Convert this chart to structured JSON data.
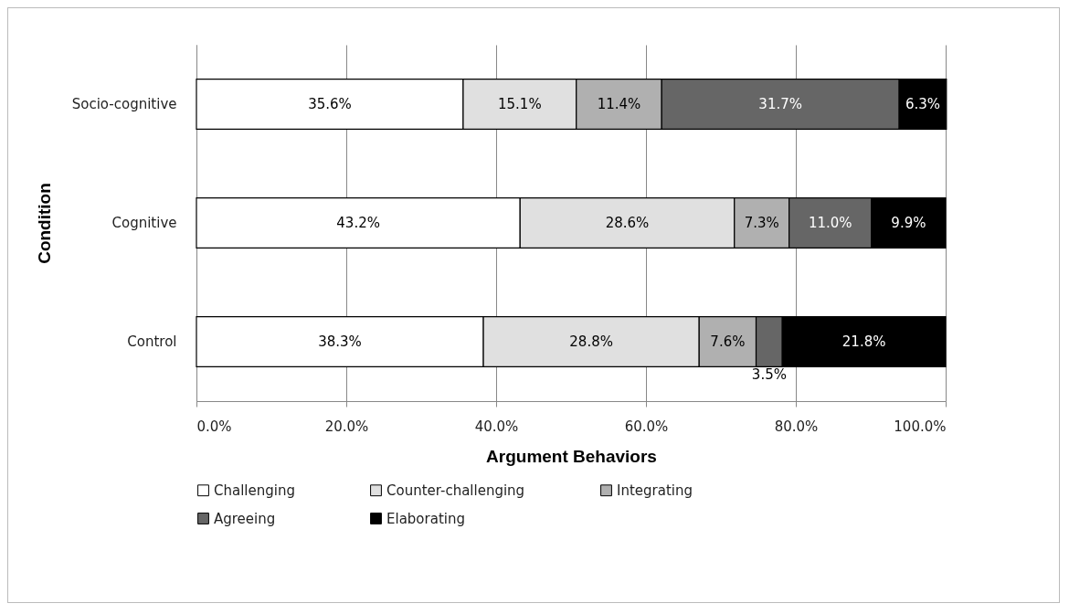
{
  "chart_data": {
    "type": "bar",
    "orientation": "horizontal",
    "stacked": true,
    "xlabel": "Argument Behaviors",
    "ylabel": "Condition",
    "categories": [
      "Socio-cognitive",
      "Cognitive",
      "Control"
    ],
    "series": [
      {
        "name": "Challenging",
        "color": "#ffffff",
        "values": [
          35.6,
          43.2,
          38.3
        ],
        "value_labels": [
          "35.6%",
          "43.2%",
          "38.3%"
        ]
      },
      {
        "name": "Counter-challenging",
        "color": "#e0e0e0",
        "values": [
          15.1,
          28.6,
          28.8
        ],
        "value_labels": [
          "15.1%",
          "28.6%",
          "28.8%"
        ]
      },
      {
        "name": "Integrating",
        "color": "#b0b0b0",
        "values": [
          11.4,
          7.3,
          7.6
        ],
        "value_labels": [
          "11.4%",
          "7.3%",
          "7.6%"
        ]
      },
      {
        "name": "Agreeing",
        "color": "#666666",
        "values": [
          31.7,
          11.0,
          3.5
        ],
        "value_labels": [
          "31.7%",
          "11.0%",
          "3.5%"
        ]
      },
      {
        "name": "Elaborating",
        "color": "#000000",
        "values": [
          6.3,
          9.9,
          21.8
        ],
        "value_labels": [
          "6.3%",
          "9.9%",
          "21.8%"
        ]
      }
    ],
    "xlim": [
      0,
      100
    ],
    "xticks": [
      {
        "value": 0,
        "label": "0.0%"
      },
      {
        "value": 20,
        "label": "20.0%"
      },
      {
        "value": 40,
        "label": "40.0%"
      },
      {
        "value": 60,
        "label": "60.0%"
      },
      {
        "value": 80,
        "label": "80.0%"
      },
      {
        "value": 100,
        "label": "100.0%"
      }
    ],
    "grid": "x",
    "legend": "bottom"
  }
}
